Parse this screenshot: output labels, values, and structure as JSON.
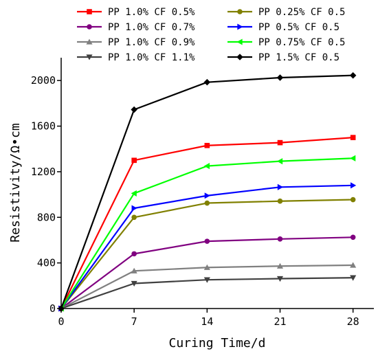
{
  "chart_data": {
    "type": "line",
    "xlabel": "Curing Time/d",
    "ylabel": "Resistivity/Ω•cm",
    "x": [
      0,
      7,
      14,
      21,
      28
    ],
    "xlim": [
      0,
      30
    ],
    "ylim": [
      0,
      2200
    ],
    "xticks": [
      "0",
      "7",
      "14",
      "21",
      "28"
    ],
    "yticks": [
      "0",
      "400",
      "800",
      "1200",
      "1600",
      "2000"
    ],
    "grid": false,
    "legend_position": "top",
    "series": [
      {
        "name": "PP 1.0%  CF 0.5%",
        "color": "#ff0000",
        "marker": "square",
        "values": [
          0,
          1300,
          1430,
          1455,
          1500
        ]
      },
      {
        "name": "PP 1.0%  CF 0.7%",
        "color": "#800080",
        "marker": "circle",
        "values": [
          0,
          480,
          590,
          610,
          625
        ]
      },
      {
        "name": "PP 1.0%  CF 0.9%",
        "color": "#808080",
        "marker": "triangle-up",
        "values": [
          0,
          330,
          360,
          372,
          380
        ]
      },
      {
        "name": "PP 1.0%  CF 1.1%",
        "color": "#404040",
        "marker": "triangle-down",
        "values": [
          0,
          220,
          252,
          262,
          270
        ]
      },
      {
        "name": "PP 0.25% CF 0.5",
        "color": "#808000",
        "marker": "circle",
        "values": [
          0,
          800,
          925,
          942,
          955
        ]
      },
      {
        "name": "PP 0.5%  CF 0.5",
        "color": "#0000ff",
        "marker": "triangle-right",
        "values": [
          0,
          880,
          990,
          1065,
          1080
        ]
      },
      {
        "name": "PP 0.75% CF 0.5",
        "color": "#00ff00",
        "marker": "triangle-left",
        "values": [
          0,
          1010,
          1250,
          1292,
          1318
        ]
      },
      {
        "name": "PP 1.5%  CF 0.5",
        "color": "#000000",
        "marker": "diamond",
        "values": [
          0,
          1745,
          1985,
          2025,
          2045
        ]
      }
    ]
  }
}
